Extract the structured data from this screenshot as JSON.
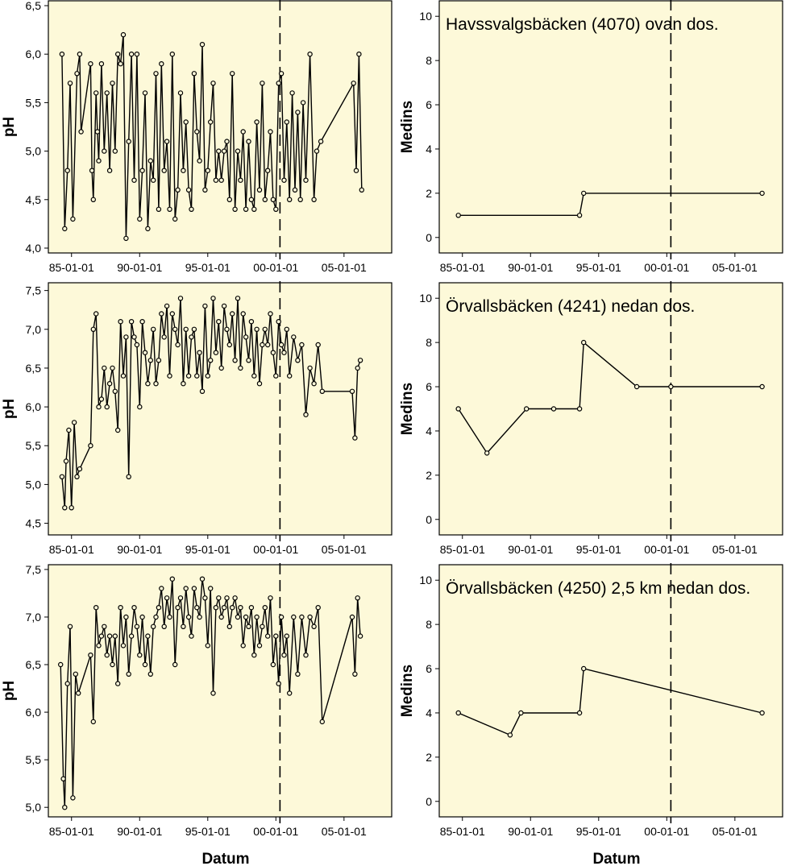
{
  "figure": {
    "plot_background": "#fdf9d9",
    "line_color": "#000000",
    "xlabel": "Datum"
  },
  "chart_data": [
    {
      "id": "ph-havssvalgsbacken",
      "type": "line",
      "title": "",
      "xlabel": "",
      "ylabel": "pH",
      "xlim": [
        1983.3,
        2008.5
      ],
      "ylim": [
        3.95,
        6.55
      ],
      "yticks": [
        "4,0",
        "4,5",
        "5,0",
        "5,5",
        "6,0",
        "6,5"
      ],
      "ytick_values": [
        4.0,
        4.5,
        5.0,
        5.5,
        6.0,
        6.5
      ],
      "xticks": [
        "85-01-01",
        "90-01-01",
        "95-01-01",
        "00-01-01",
        "05-01-01"
      ],
      "xtick_values": [
        1985,
        1990,
        1995,
        2000,
        2005
      ],
      "vline_x": 2000.3,
      "series": [
        {
          "x": [
            1984.3,
            1984.5,
            1984.7,
            1984.9,
            1985.1,
            1985.4,
            1985.6,
            1985.7,
            1986.4,
            1986.5,
            1986.6,
            1986.8,
            1986.9,
            1987.0,
            1987.2,
            1987.4,
            1987.6,
            1987.8,
            1988.0,
            1988.2,
            1988.4,
            1988.6,
            1988.8,
            1989.0,
            1989.2,
            1989.4,
            1989.6,
            1989.8,
            1990.0,
            1990.2,
            1990.4,
            1990.6,
            1990.8,
            1991.0,
            1991.2,
            1991.4,
            1991.6,
            1991.8,
            1992.0,
            1992.2,
            1992.4,
            1992.6,
            1992.8,
            1993.0,
            1993.2,
            1993.4,
            1993.6,
            1993.8,
            1994.0,
            1994.2,
            1994.4,
            1994.6,
            1994.8,
            1995.0,
            1995.2,
            1995.4,
            1995.6,
            1995.8,
            1996.0,
            1996.2,
            1996.4,
            1996.6,
            1996.8,
            1997.0,
            1997.2,
            1997.4,
            1997.6,
            1997.8,
            1998.0,
            1998.2,
            1998.4,
            1998.6,
            1998.8,
            1999.0,
            1999.2,
            1999.4,
            1999.6,
            1999.8,
            2000.0,
            2000.2,
            2000.4,
            2000.6,
            2000.8,
            2001.0,
            2001.2,
            2001.4,
            2001.6,
            2001.8,
            2002.0,
            2002.2,
            2002.5,
            2002.8,
            2003.0,
            2003.3,
            2005.7,
            2005.9,
            2006.1,
            2006.3
          ],
          "y": [
            6.0,
            4.2,
            4.8,
            5.7,
            4.3,
            5.8,
            6.0,
            5.2,
            5.9,
            4.8,
            4.5,
            5.6,
            5.2,
            4.9,
            5.9,
            5.0,
            5.6,
            4.8,
            5.7,
            5.0,
            6.0,
            5.9,
            6.2,
            4.1,
            5.1,
            6.0,
            4.7,
            6.0,
            4.3,
            4.8,
            5.6,
            4.2,
            4.9,
            4.7,
            5.8,
            4.4,
            5.9,
            4.8,
            5.1,
            4.4,
            6.0,
            4.3,
            4.6,
            5.6,
            4.8,
            5.3,
            4.6,
            4.4,
            5.8,
            5.2,
            4.9,
            6.1,
            4.6,
            4.8,
            5.3,
            5.7,
            4.7,
            5.0,
            4.7,
            5.0,
            5.1,
            4.5,
            5.8,
            4.4,
            5.0,
            4.7,
            5.2,
            4.4,
            5.1,
            4.5,
            4.4,
            5.3,
            4.6,
            5.7,
            4.5,
            4.8,
            5.2,
            4.5,
            4.4,
            5.7,
            5.8,
            4.7,
            5.3,
            4.5,
            5.6,
            4.6,
            5.4,
            4.5,
            5.5,
            4.7,
            6.0,
            4.5,
            5.0,
            5.1,
            5.7,
            4.8,
            6.0,
            4.6
          ]
        }
      ]
    },
    {
      "id": "medins-havssvalgsbacken",
      "type": "line",
      "title": "Havssvalgsbäcken (4070) ovan dos.",
      "xlabel": "",
      "ylabel": "Medins",
      "xlim": [
        1983.3,
        2008.5
      ],
      "ylim": [
        -0.7,
        10.7
      ],
      "yticks": [
        "0",
        "2",
        "4",
        "6",
        "8",
        "10"
      ],
      "ytick_values": [
        0,
        2,
        4,
        6,
        8,
        10
      ],
      "xticks": [
        "85-01-01",
        "90-01-01",
        "95-01-01",
        "00-01-01",
        "05-01-01"
      ],
      "xtick_values": [
        1985,
        1990,
        1995,
        2000,
        2005
      ],
      "vline_x": 2000.3,
      "series": [
        {
          "x": [
            1984.7,
            1993.6,
            1993.9,
            2007.0
          ],
          "y": [
            1,
            1,
            2,
            2
          ]
        }
      ]
    },
    {
      "id": "ph-orvallsbacken-4241",
      "type": "line",
      "title": "",
      "xlabel": "",
      "ylabel": "pH",
      "xlim": [
        1983.3,
        2008.5
      ],
      "ylim": [
        4.35,
        7.6
      ],
      "yticks": [
        "4,5",
        "5,0",
        "5,5",
        "6,0",
        "6,5",
        "7,0",
        "7,5"
      ],
      "ytick_values": [
        4.5,
        5.0,
        5.5,
        6.0,
        6.5,
        7.0,
        7.5
      ],
      "xticks": [
        "85-01-01",
        "90-01-01",
        "95-01-01",
        "00-01-01",
        "05-01-01"
      ],
      "xtick_values": [
        1985,
        1990,
        1995,
        2000,
        2005
      ],
      "vline_x": 2000.3,
      "series": [
        {
          "x": [
            1984.3,
            1984.5,
            1984.6,
            1984.8,
            1985.0,
            1985.2,
            1985.4,
            1985.6,
            1986.4,
            1986.6,
            1986.8,
            1987.0,
            1987.2,
            1987.4,
            1987.6,
            1987.8,
            1988.0,
            1988.2,
            1988.4,
            1988.6,
            1988.8,
            1989.0,
            1989.2,
            1989.4,
            1989.6,
            1989.8,
            1990.0,
            1990.2,
            1990.4,
            1990.6,
            1990.8,
            1991.0,
            1991.2,
            1991.4,
            1991.6,
            1991.8,
            1992.0,
            1992.2,
            1992.4,
            1992.6,
            1992.8,
            1993.0,
            1993.2,
            1993.4,
            1993.6,
            1993.8,
            1994.0,
            1994.2,
            1994.4,
            1994.6,
            1994.8,
            1995.0,
            1995.2,
            1995.4,
            1995.6,
            1995.8,
            1996.0,
            1996.2,
            1996.4,
            1996.6,
            1996.8,
            1997.0,
            1997.2,
            1997.4,
            1997.6,
            1997.8,
            1998.0,
            1998.2,
            1998.4,
            1998.6,
            1998.8,
            1999.0,
            1999.2,
            1999.4,
            1999.6,
            1999.8,
            2000.0,
            2000.2,
            2000.4,
            2000.6,
            2000.8,
            2001.0,
            2001.3,
            2001.6,
            2001.9,
            2002.2,
            2002.5,
            2002.8,
            2003.1,
            2003.4,
            2005.6,
            2005.8,
            2006.0,
            2006.2
          ],
          "y": [
            5.1,
            4.7,
            5.3,
            5.7,
            4.7,
            5.8,
            5.1,
            5.2,
            5.5,
            7.0,
            7.2,
            6.0,
            6.1,
            6.5,
            6.0,
            6.3,
            6.5,
            6.2,
            5.7,
            7.1,
            6.4,
            6.9,
            5.1,
            7.1,
            6.9,
            6.8,
            6.0,
            7.1,
            6.7,
            6.3,
            6.6,
            7.0,
            6.3,
            6.6,
            7.2,
            6.9,
            7.3,
            6.4,
            7.2,
            7.0,
            6.8,
            7.4,
            6.3,
            7.0,
            6.4,
            6.9,
            7.0,
            6.4,
            6.7,
            6.2,
            7.3,
            6.4,
            6.6,
            7.4,
            6.7,
            7.1,
            6.5,
            7.3,
            7.0,
            6.8,
            7.2,
            6.6,
            7.4,
            6.5,
            7.2,
            6.9,
            6.6,
            7.1,
            6.4,
            7.0,
            6.3,
            6.8,
            7.0,
            6.8,
            7.2,
            6.7,
            6.4,
            7.1,
            6.8,
            6.7,
            7.0,
            6.4,
            6.9,
            6.6,
            6.8,
            5.9,
            6.5,
            6.3,
            6.8,
            6.2,
            6.2,
            5.6,
            6.5,
            6.6
          ]
        }
      ]
    },
    {
      "id": "medins-orvallsbacken-4241",
      "type": "line",
      "title": "Örvallsbäcken (4241) nedan dos.",
      "xlabel": "",
      "ylabel": "Medins",
      "xlim": [
        1983.3,
        2008.5
      ],
      "ylim": [
        -0.7,
        10.7
      ],
      "yticks": [
        "0",
        "2",
        "4",
        "6",
        "8",
        "10"
      ],
      "ytick_values": [
        0,
        2,
        4,
        6,
        8,
        10
      ],
      "xticks": [
        "85-01-01",
        "90-01-01",
        "95-01-01",
        "00-01-01",
        "05-01-01"
      ],
      "xtick_values": [
        1985,
        1990,
        1995,
        2000,
        2005
      ],
      "vline_x": 2000.3,
      "series": [
        {
          "x": [
            1984.7,
            1986.8,
            1989.7,
            1991.7,
            1993.6,
            1993.9,
            1997.8,
            2000.3,
            2007.0
          ],
          "y": [
            5,
            3,
            5,
            5,
            5,
            8,
            6,
            6,
            6
          ]
        }
      ]
    },
    {
      "id": "ph-orvallsbacken-4250",
      "type": "line",
      "title": "",
      "xlabel": "Datum",
      "ylabel": "pH",
      "xlim": [
        1983.3,
        2008.5
      ],
      "ylim": [
        4.9,
        7.55
      ],
      "yticks": [
        "5,0",
        "5,5",
        "6,0",
        "6,5",
        "7,0",
        "7,5"
      ],
      "ytick_values": [
        5.0,
        5.5,
        6.0,
        6.5,
        7.0,
        7.5
      ],
      "xticks": [
        "85-01-01",
        "90-01-01",
        "95-01-01",
        "00-01-01",
        "05-01-01"
      ],
      "xtick_values": [
        1985,
        1990,
        1995,
        2000,
        2005
      ],
      "vline_x": 2000.3,
      "series": [
        {
          "x": [
            1984.2,
            1984.4,
            1984.5,
            1984.7,
            1984.9,
            1985.1,
            1985.3,
            1985.5,
            1986.4,
            1986.6,
            1986.8,
            1987.0,
            1987.2,
            1987.4,
            1987.6,
            1987.8,
            1988.0,
            1988.2,
            1988.4,
            1988.6,
            1988.8,
            1989.0,
            1989.2,
            1989.4,
            1989.6,
            1989.8,
            1990.0,
            1990.2,
            1990.4,
            1990.6,
            1990.8,
            1991.0,
            1991.2,
            1991.4,
            1991.6,
            1991.8,
            1992.0,
            1992.2,
            1992.4,
            1992.6,
            1992.8,
            1993.0,
            1993.2,
            1993.4,
            1993.6,
            1993.8,
            1994.0,
            1994.2,
            1994.4,
            1994.6,
            1994.8,
            1995.0,
            1995.2,
            1995.4,
            1995.6,
            1995.8,
            1996.0,
            1996.2,
            1996.4,
            1996.6,
            1996.8,
            1997.0,
            1997.2,
            1997.4,
            1997.6,
            1997.8,
            1998.0,
            1998.2,
            1998.4,
            1998.6,
            1998.8,
            1999.0,
            1999.2,
            1999.4,
            1999.6,
            1999.8,
            2000.0,
            2000.2,
            2000.4,
            2000.6,
            2000.8,
            2001.0,
            2001.3,
            2001.6,
            2001.9,
            2002.2,
            2002.5,
            2002.8,
            2003.1,
            2003.4,
            2005.6,
            2005.8,
            2006.0,
            2006.2
          ],
          "y": [
            6.5,
            5.3,
            5.0,
            6.3,
            6.9,
            5.1,
            6.4,
            6.2,
            6.6,
            5.9,
            7.1,
            6.7,
            6.8,
            6.9,
            6.6,
            6.8,
            6.5,
            6.8,
            6.3,
            7.1,
            6.7,
            7.0,
            6.4,
            6.8,
            7.1,
            6.9,
            6.6,
            7.0,
            6.5,
            6.8,
            6.4,
            6.9,
            7.0,
            7.1,
            7.3,
            6.9,
            7.2,
            7.0,
            7.4,
            6.5,
            7.1,
            7.2,
            6.9,
            7.3,
            7.0,
            6.8,
            7.3,
            7.1,
            7.0,
            7.4,
            7.2,
            6.7,
            7.3,
            6.2,
            7.1,
            7.2,
            7.0,
            7.1,
            7.2,
            6.9,
            7.1,
            7.2,
            7.0,
            7.1,
            6.7,
            7.0,
            6.9,
            7.1,
            6.6,
            7.0,
            6.7,
            6.9,
            7.1,
            6.8,
            7.2,
            6.5,
            6.8,
            6.3,
            7.0,
            6.6,
            6.8,
            6.2,
            7.0,
            6.4,
            7.0,
            6.6,
            7.0,
            6.9,
            7.1,
            5.9,
            7.0,
            6.4,
            7.2,
            6.8
          ]
        }
      ]
    },
    {
      "id": "medins-orvallsbacken-4250",
      "type": "line",
      "title": "Örvallsbäcken (4250) 2,5 km nedan dos.",
      "xlabel": "Datum",
      "ylabel": "Medins",
      "xlim": [
        1983.3,
        2008.5
      ],
      "ylim": [
        -0.7,
        10.7
      ],
      "yticks": [
        "0",
        "2",
        "4",
        "6",
        "8",
        "10"
      ],
      "ytick_values": [
        0,
        2,
        4,
        6,
        8,
        10
      ],
      "xticks": [
        "85-01-01",
        "90-01-01",
        "95-01-01",
        "00-01-01",
        "05-01-01"
      ],
      "xtick_values": [
        1985,
        1990,
        1995,
        2000,
        2005
      ],
      "vline_x": 2000.3,
      "series": [
        {
          "x": [
            1984.7,
            1988.5,
            1989.3,
            1993.6,
            1993.9,
            2007.0
          ],
          "y": [
            4,
            3,
            4,
            4,
            6,
            4
          ]
        }
      ]
    }
  ]
}
